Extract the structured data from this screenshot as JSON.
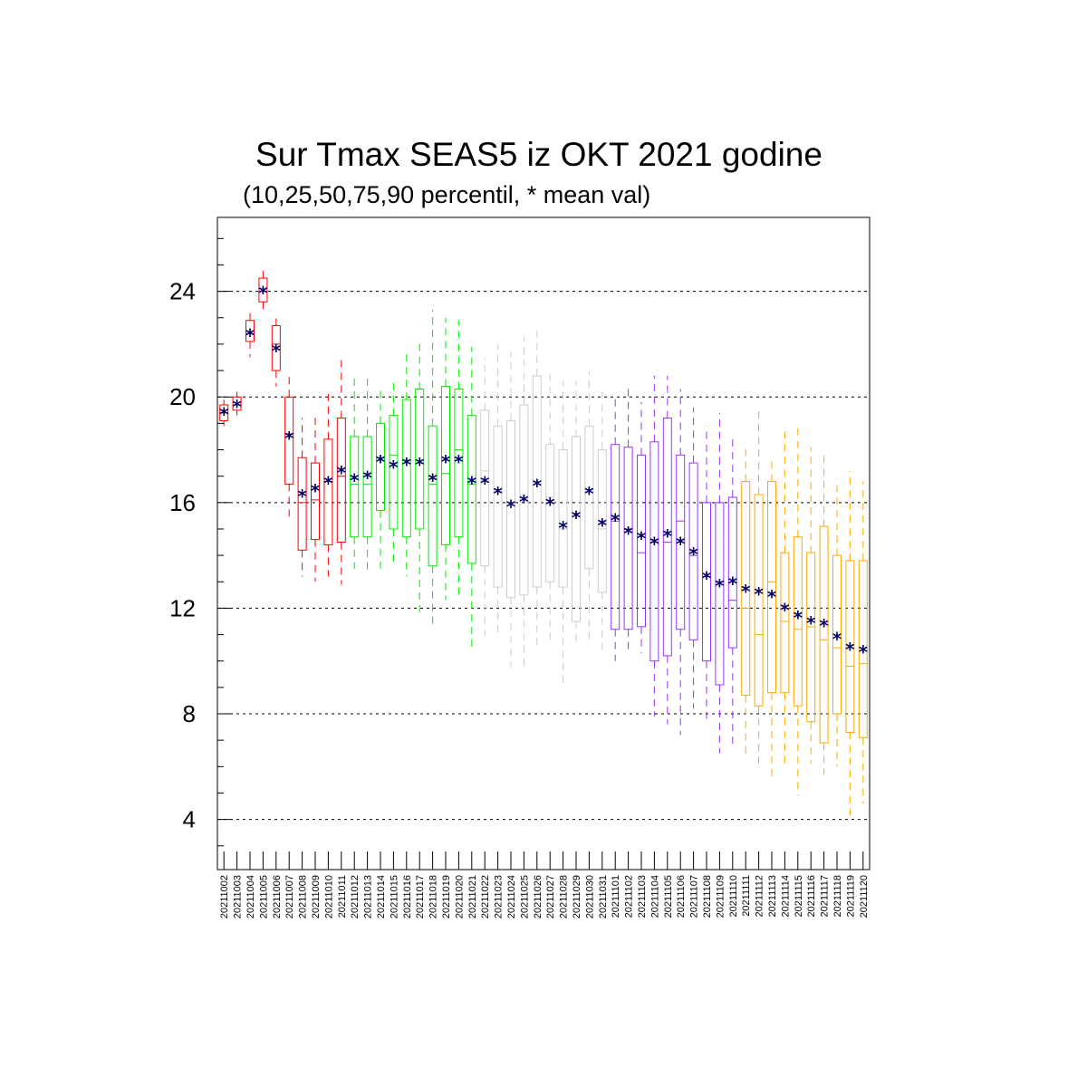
{
  "chart_data": {
    "type": "box",
    "title": "Sur Tmax SEAS5 iz OKT 2021 godine",
    "subtitle": "(10,25,50,75,90 percentil, * mean val)",
    "xlabel": "",
    "ylabel": "",
    "ylim": [
      2.1,
      26.8
    ],
    "yticks": [
      4,
      8,
      12,
      16,
      20,
      24
    ],
    "grid": "horizontal dashed at major ticks",
    "mean_marker": "*",
    "mean_color": "#000066",
    "legend": "none",
    "categories": [
      "20211002",
      "20211003",
      "20211004",
      "20211005",
      "20211006",
      "20211007",
      "20211008",
      "20211009",
      "20211010",
      "20211011",
      "20211012",
      "20211013",
      "20211014",
      "20211015",
      "20211016",
      "20211017",
      "20211018",
      "20211019",
      "20211020",
      "20211021",
      "20211022",
      "20211023",
      "20211024",
      "20211025",
      "20211026",
      "20211027",
      "20211028",
      "20211029",
      "20211030",
      "20211031",
      "20211101",
      "20211102",
      "20211103",
      "20211104",
      "20211105",
      "20211106",
      "20211107",
      "20211108",
      "20211109",
      "20211110",
      "20211111",
      "20211112",
      "20211113",
      "20211114",
      "20211115",
      "20211116",
      "20211117",
      "20211118",
      "20211119",
      "20211120"
    ],
    "colors": [
      "#ff0000",
      "#ff0000",
      "#ff0000",
      "#ff0000",
      "#ff0000",
      "#ff0000",
      "#ff0000",
      "#ff0000",
      "#ff0000",
      "#ff0000",
      "#00ee00",
      "#00ee00",
      "#00ee00",
      "#00ee00",
      "#00ee00",
      "#00ee00",
      "#00ee00",
      "#00ee00",
      "#00ee00",
      "#00ee00",
      "#cccccc",
      "#cccccc",
      "#cccccc",
      "#cccccc",
      "#cccccc",
      "#cccccc",
      "#cccccc",
      "#cccccc",
      "#cccccc",
      "#cccccc",
      "#9933ff",
      "#9933ff",
      "#9933ff",
      "#9933ff",
      "#9933ff",
      "#9933ff",
      "#9933ff",
      "#9933ff",
      "#9933ff",
      "#9933ff",
      "#ffaa00",
      "#ffaa00",
      "#ffaa00",
      "#ffaa00",
      "#ffaa00",
      "#ffaa00",
      "#ffaa00",
      "#ffaa00",
      "#ffaa00",
      "#ffaa00"
    ],
    "p10": [
      18.9,
      19.3,
      21.5,
      23.2,
      20.4,
      15.4,
      13.2,
      13.0,
      13.2,
      12.9,
      13.5,
      13.4,
      13.3,
      13.6,
      13.2,
      11.8,
      11.4,
      12.3,
      12.3,
      10.4,
      10.8,
      11.0,
      9.7,
      9.8,
      10.6,
      10.8,
      9.0,
      10.7,
      10.7,
      10.3,
      10.0,
      10.4,
      10.3,
      7.9,
      7.6,
      7.2,
      8.2,
      7.7,
      6.5,
      6.8,
      6.3,
      6.1,
      5.6,
      6.0,
      4.9,
      6.1,
      5.7,
      6.0,
      4.0,
      4.6
    ],
    "p25": [
      19.1,
      19.5,
      22.1,
      23.6,
      21.0,
      16.7,
      14.2,
      14.6,
      14.4,
      14.5,
      14.7,
      14.7,
      15.7,
      15.0,
      14.7,
      15.0,
      13.6,
      14.4,
      14.7,
      13.7,
      13.6,
      12.8,
      12.4,
      12.5,
      12.8,
      13.0,
      12.8,
      11.5,
      13.5,
      12.6,
      11.2,
      11.2,
      11.3,
      10.0,
      10.2,
      11.2,
      10.8,
      10.0,
      9.1,
      10.5,
      8.7,
      8.3,
      8.8,
      8.8,
      8.3,
      7.7,
      6.9,
      8.0,
      7.3,
      7.1
    ],
    "p50": [
      19.4,
      19.7,
      22.4,
      24.0,
      22.0,
      18.6,
      16.0,
      16.1,
      16.8,
      17.0,
      16.7,
      16.7,
      17.7,
      17.8,
      17.6,
      17.5,
      16.7,
      17.1,
      18.0,
      16.7,
      17.2,
      16.4,
      16.0,
      16.1,
      16.7,
      16.2,
      15.0,
      15.6,
      16.5,
      15.0,
      15.3,
      15.0,
      14.1,
      14.5,
      14.5,
      15.3,
      14.0,
      13.2,
      13.0,
      12.3,
      12.0,
      11.0,
      13.0,
      11.5,
      11.2,
      11.3,
      10.8,
      10.5,
      9.8,
      9.9
    ],
    "p75": [
      19.7,
      20.0,
      22.9,
      24.5,
      22.7,
      20.0,
      17.7,
      17.5,
      18.4,
      19.2,
      18.5,
      18.5,
      19.0,
      19.3,
      19.9,
      20.3,
      18.9,
      20.4,
      20.3,
      19.3,
      19.5,
      18.9,
      19.1,
      19.7,
      20.8,
      18.2,
      18.0,
      18.5,
      18.9,
      18.0,
      18.2,
      18.1,
      17.8,
      18.3,
      19.2,
      17.8,
      17.5,
      16.0,
      16.0,
      16.2,
      16.8,
      16.3,
      16.8,
      14.1,
      14.7,
      14.1,
      15.1,
      14.0,
      13.8,
      13.8
    ],
    "p90": [
      19.9,
      20.2,
      23.2,
      24.9,
      23.1,
      20.9,
      19.2,
      19.4,
      20.2,
      21.4,
      20.8,
      20.8,
      20.4,
      20.6,
      21.8,
      22.2,
      23.3,
      23.0,
      22.9,
      21.9,
      21.5,
      22.0,
      21.7,
      22.3,
      22.6,
      21.0,
      20.6,
      20.6,
      21.0,
      20.2,
      20.1,
      20.3,
      19.8,
      20.8,
      20.8,
      20.3,
      19.6,
      18.9,
      19.4,
      18.4,
      18.1,
      19.5,
      17.6,
      18.8,
      18.9,
      18.1,
      17.8,
      16.9,
      17.2,
      16.8
    ],
    "mean": [
      19.4,
      19.7,
      22.4,
      24.0,
      21.8,
      18.5,
      16.3,
      16.5,
      16.8,
      17.2,
      16.9,
      17.0,
      17.6,
      17.4,
      17.5,
      17.5,
      16.9,
      17.6,
      17.6,
      16.8,
      16.8,
      16.4,
      15.9,
      16.1,
      16.7,
      16.0,
      15.1,
      15.5,
      16.4,
      15.2,
      15.4,
      14.9,
      14.7,
      14.5,
      14.8,
      14.5,
      14.1,
      13.2,
      12.9,
      13.0,
      12.7,
      12.6,
      12.5,
      12.0,
      11.7,
      11.5,
      11.4,
      10.9,
      10.5,
      10.4
    ]
  }
}
